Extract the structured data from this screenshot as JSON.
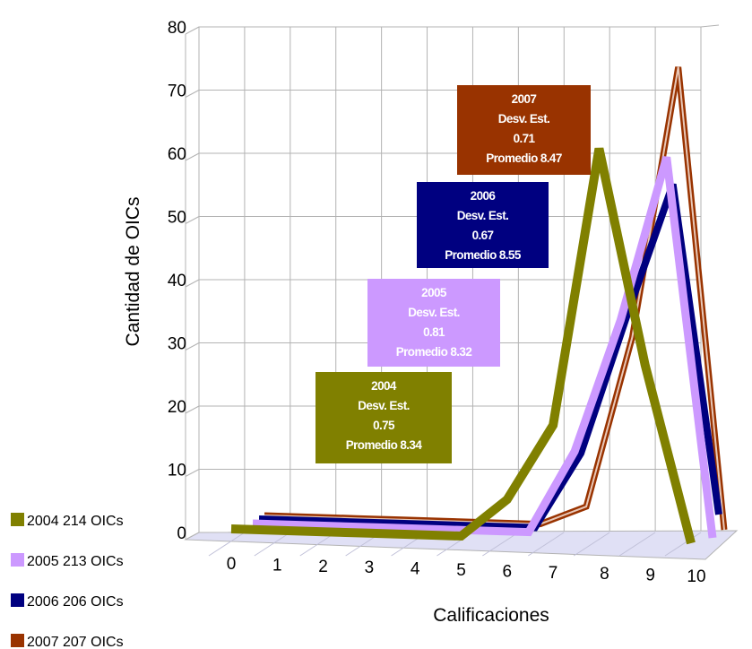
{
  "chart_data": {
    "type": "line",
    "xlabel": "Calificaciones",
    "ylabel": "Cantidad de OICs",
    "x": [
      0,
      1,
      2,
      3,
      4,
      5,
      6,
      7,
      8,
      9,
      10
    ],
    "ylim": [
      0,
      80
    ],
    "yticks": [
      0,
      10,
      20,
      30,
      40,
      50,
      60,
      70,
      80
    ],
    "grid": true,
    "legend_position": "bottom-left",
    "series": [
      {
        "name": "2004",
        "legend_count": "214 OICs",
        "color": "#808000",
        "values": [
          0,
          0,
          0,
          0,
          0,
          0,
          6,
          18,
          62,
          28,
          0
        ],
        "box": [
          "2004",
          "Desv. Est.",
          "0.75",
          "Promedio 8.34"
        ]
      },
      {
        "name": "2005",
        "legend_count": "213 OICs",
        "color": "#cc99ff",
        "values": [
          0,
          0,
          0,
          0,
          0,
          0,
          0,
          13,
          34,
          60,
          0
        ],
        "box": [
          "2005",
          "Desv. Est.",
          "0.81",
          "Promedio 8.32"
        ]
      },
      {
        "name": "2006",
        "legend_count": "206 OICs",
        "color": "#000080",
        "values": [
          0,
          0,
          0,
          0,
          0,
          0,
          0,
          12,
          34,
          55,
          3
        ],
        "box": [
          "2006",
          "Desv. Est.",
          "0.67",
          "Promedio 8.55"
        ]
      },
      {
        "name": "2007",
        "legend_count": "207 OICs",
        "color": "#993300",
        "values": [
          0,
          0,
          0,
          0,
          0,
          0,
          0,
          3,
          30,
          73,
          0
        ],
        "box": [
          "2007",
          "Desv. Est.",
          "0.71",
          "Promedio 8.47"
        ]
      }
    ]
  }
}
